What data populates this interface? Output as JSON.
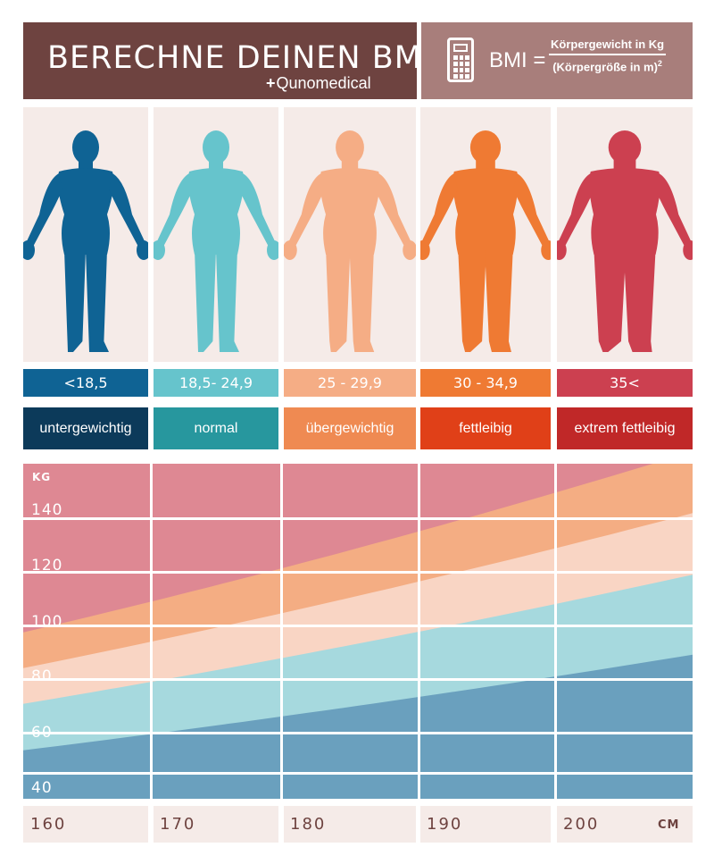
{
  "header": {
    "title": "BERECHNE DEINEN BMI",
    "brand": "Qunomedical",
    "brand_cross": "+",
    "formula": {
      "label": "BMI =",
      "numerator": "Körpergewicht in Kg",
      "denominator": "(Körpergröße in m)",
      "exponent": "2"
    },
    "icon": "calculator-icon"
  },
  "categories": [
    {
      "range": "<18,5",
      "label": "untergewichtig",
      "figure_color": "#0f6394",
      "range_color": "#0f6394",
      "label_color": "#0c3a5a",
      "icon": "body-silhouette-icon"
    },
    {
      "range": "18,5- 24,9",
      "label": "normal",
      "figure_color": "#66c4cc",
      "range_color": "#66c4cc",
      "label_color": "#27979e",
      "icon": "body-silhouette-icon"
    },
    {
      "range": "25 - 29,9",
      "label": "übergewichtig",
      "figure_color": "#f5ad85",
      "range_color": "#f5ad85",
      "label_color": "#ef8a52",
      "icon": "body-silhouette-icon"
    },
    {
      "range": "30 - 34,9",
      "label": "fettleibig",
      "figure_color": "#ef7a33",
      "range_color": "#ef7a33",
      "label_color": "#e04018",
      "icon": "body-silhouette-icon"
    },
    {
      "range": "35<",
      "label": "extrem fettleibig",
      "figure_color": "#cc4050",
      "range_color": "#cc4050",
      "label_color": "#c02828",
      "icon": "body-silhouette-icon"
    }
  ],
  "chart_data": {
    "type": "area",
    "y_unit": "KG",
    "x_unit": "CM",
    "x_ticks": [
      "160",
      "170",
      "180",
      "190",
      "200"
    ],
    "y_ticks": [
      "40",
      "60",
      "80",
      "100",
      "120",
      "140"
    ],
    "xlim": [
      160,
      210
    ],
    "ylim": [
      30,
      150
    ],
    "bmi_boundaries": [
      18.5,
      25,
      30,
      35
    ],
    "band_colors": [
      "#6aa0be",
      "#a6d9de",
      "#f9d5c4",
      "#f4ad83",
      "#de8893"
    ]
  }
}
